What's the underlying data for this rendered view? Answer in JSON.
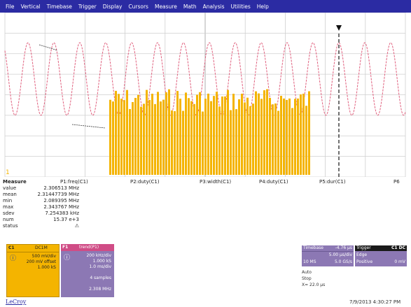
{
  "menu": [
    "File",
    "Vertical",
    "Timebase",
    "Trigger",
    "Display",
    "Cursors",
    "Measure",
    "Math",
    "Analysis",
    "Utilities",
    "Help"
  ],
  "trace_labels": {
    "channel_marker": "1",
    "f1_marker": "F1"
  },
  "measure": {
    "row_labels": [
      "Measure",
      "value",
      "mean",
      "min",
      "max",
      "sdev",
      "num",
      "status"
    ],
    "headers": [
      "P1:freq(C1)",
      "P2:duty(C1)",
      "P3:width(C1)",
      "P4:duty(C1)",
      "P5:dur(C1)",
      "P6"
    ],
    "p1_values": [
      "2.306513 MHz",
      "2.31447739 MHz",
      "2.089395 MHz",
      "2.343767 MHz",
      "7.254383 kHz",
      "15.37 e+3"
    ],
    "status_mark": "⚠"
  },
  "c1_box": {
    "title": "C1",
    "mode": "DC1M",
    "lines": [
      "500 mV/div",
      "200 mV offset",
      "1.000 kS"
    ]
  },
  "f1_box": {
    "title": "F1",
    "subtitle": "trend(P1)",
    "lines": [
      "200 kHz/div",
      "1.000 kS",
      "1.0 ms/div",
      "4 samples",
      "2.308 MHz"
    ]
  },
  "timebase_box": {
    "title": "Timebase",
    "value": "-4.76 µs",
    "lines": [
      "5.00 µs/div",
      "10 MS",
      "5.0 GS/s"
    ]
  },
  "trigger_box": {
    "title": "Trigger",
    "mode": "C1 DC",
    "lines": [
      "Edge",
      "Positive",
      "0 mV"
    ]
  },
  "grid_info": [
    "Auto",
    "Stop",
    "X=  22.0 µs"
  ],
  "footer": {
    "brand": "LeCroy",
    "timestamp": "7/9/2013 4:30:27 PM"
  },
  "colors": {
    "menu_bg": "#2b2ba3",
    "trace_c1": "#f4b400",
    "trace_f1": "#e0607e",
    "gridline": "#bdbdbd",
    "panel_purple": "#8c78b4"
  }
}
